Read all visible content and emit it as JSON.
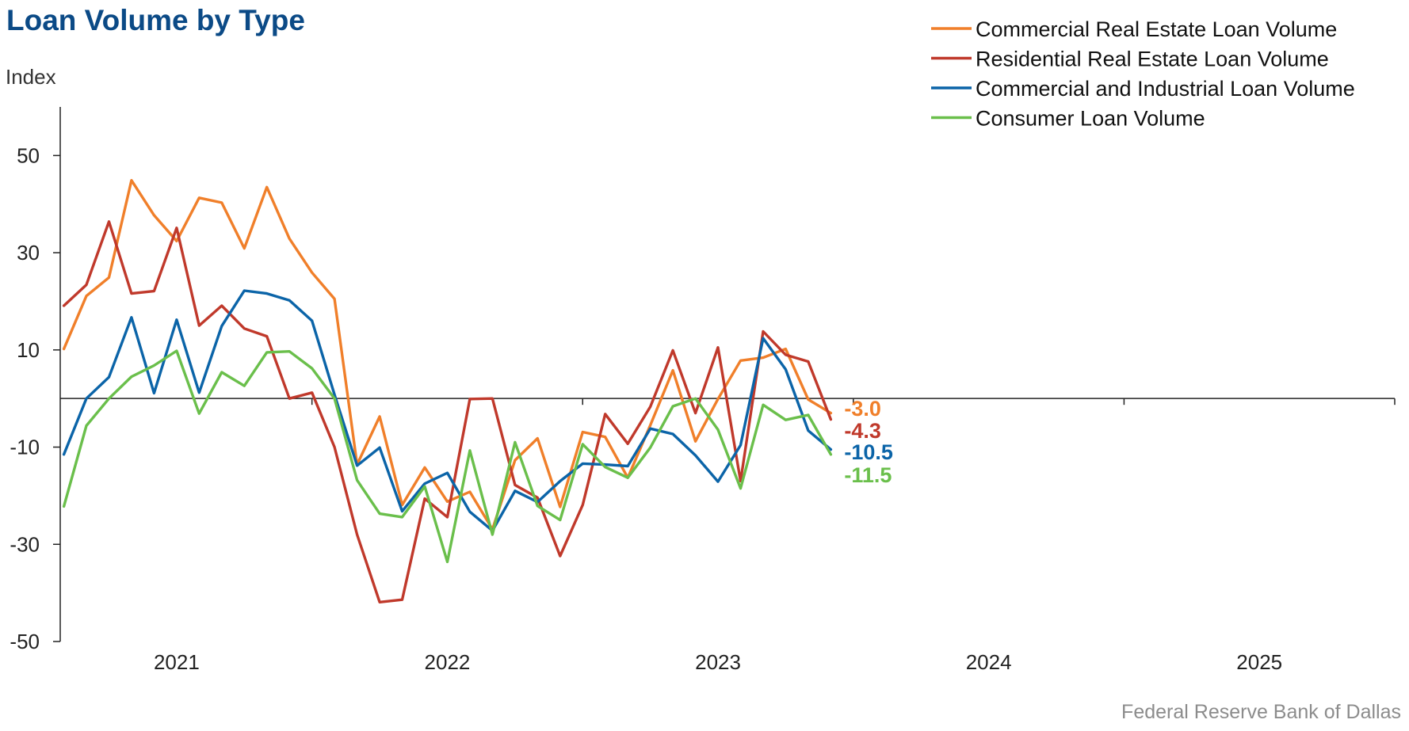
{
  "chart_data": {
    "type": "line",
    "title": "Loan Volume by Type",
    "ylabel": "Index",
    "xlabel": "",
    "ylim": [
      -50,
      60
    ],
    "yticks": [
      50,
      30,
      10,
      -10,
      -30,
      -50
    ],
    "xlim": [
      2020.57,
      2025.5
    ],
    "xticks": [
      {
        "label": "2021",
        "value": 2021
      },
      {
        "label": "2022",
        "value": 2022
      },
      {
        "label": "2023",
        "value": 2023
      },
      {
        "label": "2024",
        "value": 2024
      },
      {
        "label": "2025",
        "value": 2025
      }
    ],
    "xdividers": [
      2020.5,
      2021.5,
      2022.5,
      2023.5,
      2024.5,
      2025.5
    ],
    "zero_line": 0,
    "grid": false,
    "legend_position": "top-right",
    "x_start": "2020-08",
    "x_step": "monthly",
    "x": [
      "2020-08",
      "2020-09",
      "2020-10",
      "2020-11",
      "2020-12",
      "2021-01",
      "2021-02",
      "2021-03",
      "2021-04",
      "2021-05",
      "2021-06",
      "2021-07",
      "2021-08",
      "2021-09",
      "2021-10",
      "2021-11",
      "2021-12",
      "2022-01",
      "2022-02",
      "2022-03",
      "2022-04",
      "2022-05",
      "2022-06",
      "2022-07",
      "2022-08",
      "2022-09",
      "2022-10",
      "2022-11",
      "2022-12",
      "2023-01",
      "2023-02",
      "2023-03",
      "2023-04",
      "2023-05",
      "2023-06",
      "2023-07",
      "2023-08",
      "2023-09",
      "2023-10",
      "2023-11",
      "2023-12",
      "2024-01",
      "2024-02",
      "2024-03",
      "2024-04",
      "2024-05",
      "2024-06",
      "2024-07",
      "2024-08"
    ],
    "series": [
      {
        "name": "Commercial Real Estate Loan Volume",
        "color": "#f07f2a",
        "end_label": "-3.0",
        "values": [
          10.2,
          21.1,
          24.9,
          44.9,
          37.7,
          32.4,
          41.3,
          40.3,
          30.9,
          43.5,
          32.9,
          25.9,
          20.5,
          -13.6,
          -3.7,
          -21.9,
          -14.2,
          -21.2,
          -19.2,
          -26.9,
          -12.7,
          -8.2,
          -22.3,
          -6.9,
          -7.9,
          -16.3,
          -5.5,
          5.8,
          -8.8,
          -0.1,
          7.8,
          8.4,
          10.2,
          -0.2,
          -3.0,
          null,
          null,
          null,
          null,
          null,
          null,
          null,
          null,
          null,
          null,
          null,
          null,
          null,
          null
        ]
      },
      {
        "name": "Residential Real Estate Loan Volume",
        "color": "#c0392b",
        "end_label": "-4.3",
        "values": [
          19.1,
          23.4,
          36.4,
          21.6,
          22.1,
          35.1,
          15.0,
          19.1,
          14.4,
          12.8,
          0.0,
          1.2,
          -10.0,
          -28.0,
          -41.9,
          -41.4,
          -20.6,
          -24.4,
          -0.1,
          0.0,
          -17.8,
          -20.4,
          -32.4,
          -21.9,
          -3.2,
          -9.3,
          -1.7,
          9.9,
          -3.0,
          10.5,
          -17.0,
          13.8,
          9.0,
          7.6,
          -4.3,
          null,
          null,
          null,
          null,
          null,
          null,
          null,
          null,
          null,
          null,
          null,
          null,
          null,
          null
        ]
      },
      {
        "name": "Commercial and Industrial Loan Volume",
        "color": "#0b64a8",
        "end_label": "-10.5",
        "values": [
          -11.5,
          0.0,
          4.4,
          16.7,
          1.1,
          16.2,
          1.2,
          14.9,
          22.2,
          21.6,
          20.2,
          16.0,
          0.8,
          -13.8,
          -10.1,
          -23.2,
          -17.5,
          -15.3,
          -23.3,
          -27.2,
          -19.0,
          -21.3,
          -17.0,
          -13.4,
          -13.6,
          -13.9,
          -6.2,
          -7.3,
          -11.7,
          -17.1,
          -9.6,
          12.4,
          6.0,
          -6.6,
          -10.5,
          null,
          null,
          null,
          null,
          null,
          null,
          null,
          null,
          null,
          null,
          null,
          null,
          null,
          null
        ]
      },
      {
        "name": "Consumer Loan Volume",
        "color": "#6abf4b",
        "end_label": "-11.5",
        "values": [
          -22.2,
          -5.6,
          0.0,
          4.5,
          6.8,
          9.8,
          -3.1,
          5.4,
          2.6,
          9.5,
          9.7,
          6.2,
          0.0,
          -16.8,
          -23.7,
          -24.4,
          -18.1,
          -33.6,
          -10.7,
          -28.0,
          -9.0,
          -22.1,
          -25.0,
          -9.4,
          -14.1,
          -16.3,
          -10.1,
          -1.6,
          0.0,
          -6.4,
          -18.5,
          -1.3,
          -4.4,
          -3.4,
          -11.5,
          null,
          null,
          null,
          null,
          null,
          null,
          null,
          null,
          null,
          null,
          null,
          null,
          null,
          null
        ]
      }
    ],
    "source": "Federal Reserve Bank of Dallas"
  }
}
